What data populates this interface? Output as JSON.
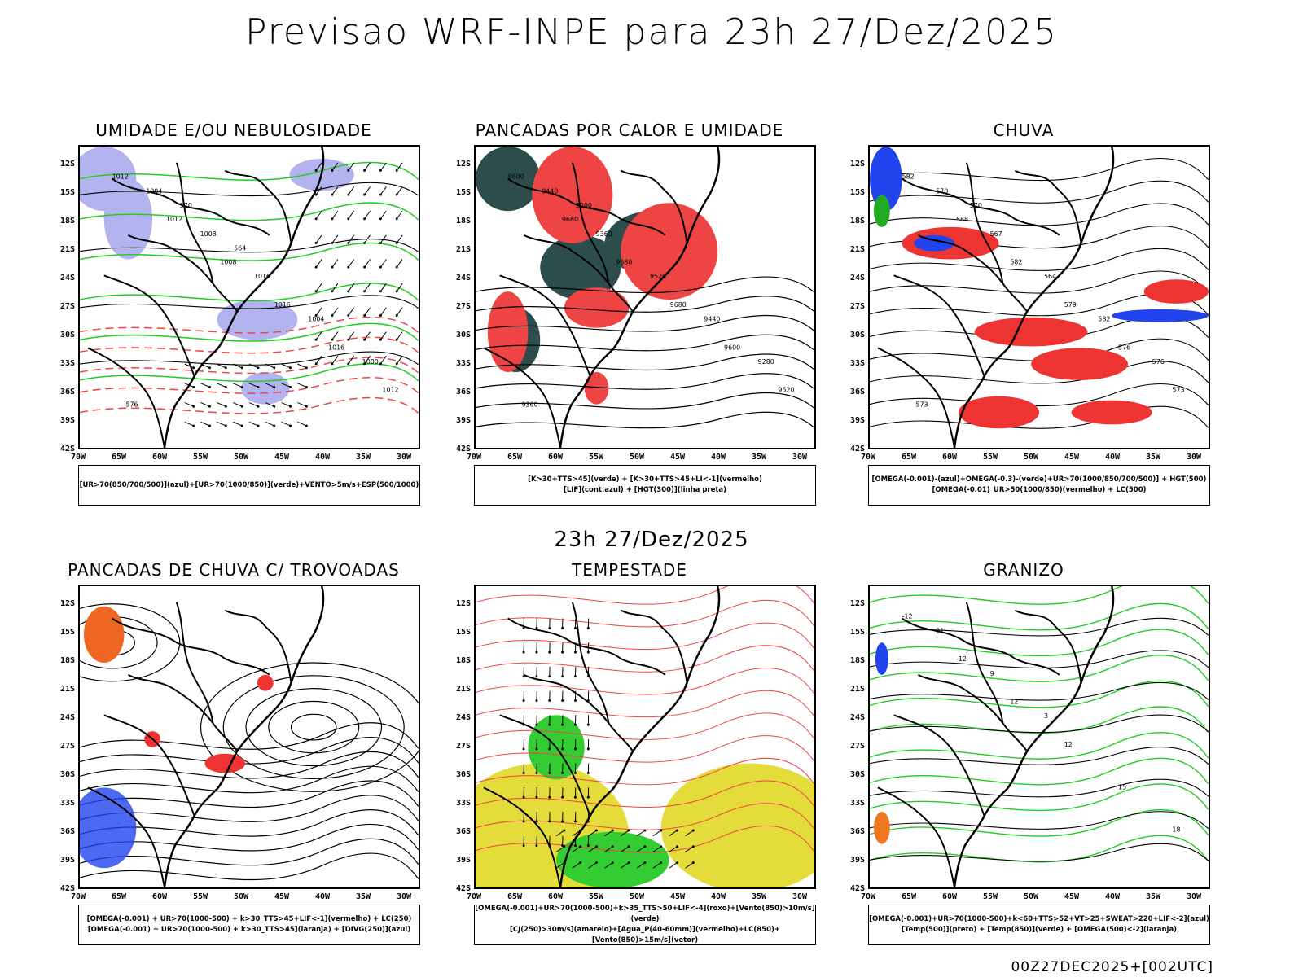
{
  "header": {
    "title": "Previsao WRF-INPE  para 23h 27/Dez/2025"
  },
  "middle": {
    "title": "23h 27/Dez/2025"
  },
  "footer": {
    "text": "00Z27DEC2025+[002UTC]"
  },
  "axes": {
    "lat_labels": [
      "12S",
      "15S",
      "18S",
      "21S",
      "24S",
      "27S",
      "30S",
      "33S",
      "36S",
      "39S",
      "42S"
    ],
    "lon_labels": [
      "70W",
      "65W",
      "60W",
      "55W",
      "50W",
      "45W",
      "40W",
      "35W",
      "30W"
    ]
  },
  "panels": [
    {
      "title": "UMIDADE E/OU NEBULOSIDADE",
      "legend": [
        "[UR>70(850/700/500)](azul)+[UR>70(1000/850)](verde)+VENTO>5m/s+ESP(500/1000)"
      ],
      "contour_labels": [
        "1012",
        "1012",
        "1008",
        "1016",
        "1016",
        "1012",
        "1004",
        "1008",
        "1016",
        "1004",
        "1000",
        "576",
        "570",
        "564"
      ]
    },
    {
      "title": "PANCADAS POR CALOR E UMIDADE",
      "legend": [
        "[K>30+TTS>45](verde) + [K>30+TTS>45+LI<-1](vermelho)",
        "[LIF](cont.azul) + [HGT(300)](linha preta)"
      ],
      "contour_labels": [
        "9600",
        "9680",
        "9680",
        "9680",
        "9600",
        "9520",
        "9440",
        "9360",
        "9520",
        "9440",
        "9280",
        "9360",
        "9200"
      ]
    },
    {
      "title": "CHUVA",
      "legend": [
        "[OMEGA(-0.001)-(azul)+OMEGA(-0.3)-(verde)+UR>70(1000/850/700/500)] + HGT(500)",
        "[OMEGA(-0.01)_UR>50(1000/850)(vermelho) + LC(500)"
      ],
      "contour_labels": [
        "582",
        "588",
        "582",
        "579",
        "576",
        "573",
        "570",
        "567",
        "564",
        "582",
        "576",
        "573",
        "570"
      ]
    },
    {
      "title": "PANCADAS DE CHUVA C/ TROVOADAS",
      "legend": [
        "[OMEGA(-0.001) + UR>70(1000-500) + k>30_TTS>45+LIF<-1](vermelho) + LC(250)",
        "[OMEGA(-0.001) + UR>70(1000-500) + k>30_TTS>45](laranja) + [DIVG(250)](azul)"
      ],
      "contour_labels": []
    },
    {
      "title": "TEMPESTADE",
      "legend": [
        "[OMEGA(-0.001)+UR>70(1000-500)+k>35_TTS>50+LIF<-4](roxo)+[Vento(850)>10m/s](verde)",
        "[CJ(250)>30m/s](amarelo)+[Agua_P(40-60mm)](vermelho)+LC(850)+[Vento(850)>15m/s](vetor)"
      ],
      "contour_labels": []
    },
    {
      "title": "GRANIZO",
      "legend": [
        "[OMEGA(-0.001)+UR>70(1000-500)+k<60+TTS>52+VT>25+SWEAT>220+LIF<-2](azul)",
        "[Temp(500)](preto) + [Temp(850)](verde) + [OMEGA(500)<-2](laranja)"
      ],
      "contour_labels": [
        "-12",
        "-12",
        "12",
        "12",
        "15",
        "18",
        "21",
        "9",
        "3"
      ]
    }
  ]
}
